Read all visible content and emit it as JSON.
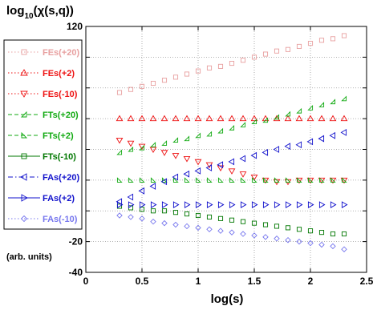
{
  "chart_data": {
    "type": "scatter",
    "title": "",
    "ylabel_prefix": "log",
    "ylabel_sub": "10",
    "ylabel_rest": "(χ(s,q))",
    "xlabel": "log(s)",
    "units_note": "(arb. units)",
    "xlim": [
      0,
      2.5
    ],
    "ylim": [
      -40,
      120
    ],
    "xticks": [
      0,
      0.5,
      1,
      1.5,
      2,
      2.5
    ],
    "xtick_labels": [
      "0",
      "0.5",
      "1",
      "1.5",
      "2",
      "2.5"
    ],
    "yticks": [
      -40,
      -20,
      0,
      20,
      40,
      60,
      80,
      100,
      120
    ],
    "ytick_labels": [
      "-40",
      "-20",
      "",
      "",
      "",
      "",
      "",
      "",
      "120"
    ],
    "grid": true,
    "legend_position": "left",
    "series": [
      {
        "name": "FEs(+20)",
        "color": "#e8a0a0",
        "marker": "square",
        "line": "dotted",
        "x": [
          0.3,
          0.4,
          0.5,
          0.6,
          0.7,
          0.8,
          0.9,
          1.0,
          1.1,
          1.2,
          1.3,
          1.4,
          1.5,
          1.6,
          1.7,
          1.8,
          1.9,
          2.0,
          2.1,
          2.2,
          2.3
        ],
        "y": [
          77,
          79,
          81,
          83,
          85,
          87,
          89,
          91,
          93,
          94,
          96,
          98,
          100,
          102,
          104,
          105,
          107,
          109,
          111,
          112,
          114
        ]
      },
      {
        "name": "FEs(+2)",
        "color": "#ee1111",
        "marker": "triangle-up",
        "line": "dotted",
        "x": [
          0.3,
          0.4,
          0.5,
          0.6,
          0.7,
          0.8,
          0.9,
          1.0,
          1.1,
          1.2,
          1.3,
          1.4,
          1.5,
          1.6,
          1.7,
          1.8,
          1.9,
          2.0,
          2.1,
          2.2,
          2.3
        ],
        "y": [
          60,
          60,
          60,
          60,
          60,
          60,
          60,
          60,
          60,
          60,
          60,
          60,
          60,
          60,
          60,
          60,
          60,
          60,
          60,
          60,
          60
        ]
      },
      {
        "name": "FEs(-10)",
        "color": "#ee1111",
        "marker": "triangle-down",
        "line": "dotted",
        "x": [
          0.3,
          0.4,
          0.5,
          0.6,
          0.7,
          0.8,
          0.9,
          1.0,
          1.1,
          1.2,
          1.3,
          1.4,
          1.5,
          1.6,
          1.7,
          1.8,
          1.9,
          2.0,
          2.1,
          2.2,
          2.3
        ],
        "y": [
          46,
          44,
          42,
          40,
          38,
          36,
          34,
          32,
          30,
          28,
          26,
          24,
          22,
          20,
          19,
          19,
          20,
          20,
          20,
          20,
          20
        ]
      },
      {
        "name": "FTs(+20)",
        "color": "#11aa11",
        "marker": "triangle-right-up",
        "line": "dashed",
        "x": [
          0.3,
          0.4,
          0.5,
          0.6,
          0.7,
          0.8,
          0.9,
          1.0,
          1.1,
          1.2,
          1.3,
          1.4,
          1.5,
          1.6,
          1.7,
          1.8,
          1.9,
          2.0,
          2.1,
          2.2,
          2.3
        ],
        "y": [
          38,
          40,
          41,
          43,
          44,
          46,
          47,
          49,
          50,
          52,
          54,
          56,
          58,
          59,
          61,
          63,
          65,
          67,
          69,
          71,
          73
        ]
      },
      {
        "name": "FTs(+2)",
        "color": "#11aa11",
        "marker": "triangle-left-up",
        "line": "dashed",
        "x": [
          0.3,
          0.4,
          0.5,
          0.6,
          0.7,
          0.8,
          0.9,
          1.0,
          1.1,
          1.2,
          1.3,
          1.4,
          1.5,
          1.6,
          1.7,
          1.8,
          1.9,
          2.0,
          2.1,
          2.2,
          2.3
        ],
        "y": [
          20,
          20,
          20,
          20,
          20,
          20,
          20,
          20,
          20,
          20,
          20,
          20,
          20,
          20,
          20,
          20,
          20,
          20,
          20,
          20,
          20
        ]
      },
      {
        "name": "FTs(-10)",
        "color": "#007700",
        "marker": "square",
        "line": "solid",
        "x": [
          0.3,
          0.4,
          0.5,
          0.6,
          0.7,
          0.8,
          0.9,
          1.0,
          1.1,
          1.2,
          1.3,
          1.4,
          1.5,
          1.6,
          1.7,
          1.8,
          1.9,
          2.0,
          2.1,
          2.2,
          2.3
        ],
        "y": [
          3,
          2,
          1,
          0,
          0,
          -1,
          -2,
          -3,
          -4,
          -5,
          -6,
          -7,
          -8,
          -9,
          -10,
          -11,
          -12,
          -13,
          -14,
          -15,
          -15
        ]
      },
      {
        "name": "FAs(+20)",
        "color": "#1111cc",
        "marker": "triangle-left",
        "line": "dashdot",
        "x": [
          0.3,
          0.4,
          0.5,
          0.6,
          0.7,
          0.8,
          0.9,
          1.0,
          1.1,
          1.2,
          1.3,
          1.4,
          1.5,
          1.6,
          1.7,
          1.8,
          1.9,
          2.0,
          2.1,
          2.2,
          2.3
        ],
        "y": [
          6,
          9,
          13,
          16,
          19,
          22,
          24,
          26,
          28,
          30,
          32,
          34,
          36,
          38,
          40,
          42,
          43,
          45,
          47,
          49,
          51
        ]
      },
      {
        "name": "FAs(+2)",
        "color": "#1111cc",
        "marker": "triangle-right",
        "line": "solid",
        "x": [
          0.3,
          0.4,
          0.5,
          0.6,
          0.7,
          0.8,
          0.9,
          1.0,
          1.1,
          1.2,
          1.3,
          1.4,
          1.5,
          1.6,
          1.7,
          1.8,
          1.9,
          2.0,
          2.1,
          2.2,
          2.3
        ],
        "y": [
          4,
          4,
          4,
          4,
          4,
          4,
          4,
          4,
          4,
          4,
          4,
          4,
          4,
          4,
          4,
          4,
          4,
          4,
          4,
          4,
          4
        ]
      },
      {
        "name": "FAs(-10)",
        "color": "#7777ee",
        "marker": "diamond",
        "line": "dotted",
        "x": [
          0.3,
          0.4,
          0.5,
          0.6,
          0.7,
          0.8,
          0.9,
          1.0,
          1.1,
          1.2,
          1.3,
          1.4,
          1.5,
          1.6,
          1.7,
          1.8,
          1.9,
          2.0,
          2.1,
          2.2,
          2.3
        ],
        "y": [
          -3,
          -4,
          -5,
          -7,
          -8,
          -9,
          -10,
          -11,
          -12,
          -13,
          -14,
          -15,
          -16,
          -17,
          -18,
          -19,
          -20,
          -21,
          -22,
          -23,
          -25
        ]
      }
    ]
  }
}
